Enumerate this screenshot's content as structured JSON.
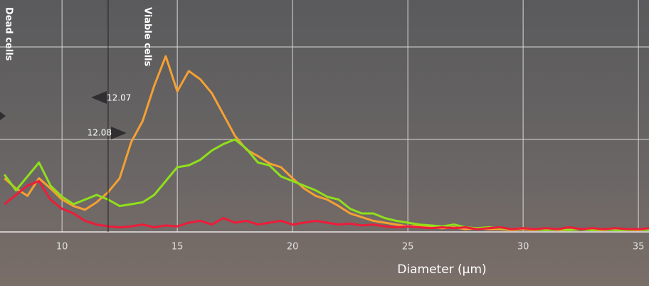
{
  "chart_data": {
    "type": "line",
    "xlabel": "Diameter (µm)",
    "x": [
      7.5,
      8,
      8.5,
      9,
      9.5,
      10,
      10.5,
      11,
      11.5,
      12,
      12.5,
      13,
      13.5,
      14,
      14.5,
      15,
      15.5,
      16,
      16.5,
      17,
      17.5,
      18,
      18.5,
      19,
      19.5,
      20,
      20.5,
      21,
      21.5,
      22,
      22.5,
      23,
      23.5,
      24,
      24.5,
      25,
      25.5,
      26,
      26.5,
      27,
      27.5,
      28,
      28.5,
      29,
      29.5,
      30,
      30.5,
      31,
      31.5,
      32,
      32.5,
      33,
      33.5,
      34,
      34.5,
      35,
      35.5
    ],
    "series": [
      {
        "color": "#f5a033",
        "values": [
          0.58,
          0.47,
          0.39,
          0.58,
          0.47,
          0.35,
          0.28,
          0.24,
          0.32,
          0.43,
          0.58,
          0.97,
          1.2,
          1.58,
          1.9,
          1.52,
          1.74,
          1.65,
          1.5,
          1.27,
          1.04,
          0.89,
          0.82,
          0.74,
          0.7,
          0.58,
          0.47,
          0.39,
          0.35,
          0.28,
          0.2,
          0.16,
          0.12,
          0.1,
          0.08,
          0.06,
          0.07,
          0.05,
          0.04,
          0.05,
          0.03,
          0.04,
          0.03,
          0.03,
          0.02,
          0.03,
          0.02,
          0.03,
          0.02,
          0.02,
          0.03,
          0.02,
          0.02,
          0.03,
          0.02,
          0.02,
          0.03
        ]
      },
      {
        "color": "#8fe01a",
        "values": [
          0.62,
          0.45,
          0.6,
          0.75,
          0.5,
          0.38,
          0.3,
          0.35,
          0.4,
          0.35,
          0.28,
          0.3,
          0.32,
          0.4,
          0.55,
          0.7,
          0.72,
          0.78,
          0.88,
          0.95,
          1.0,
          0.9,
          0.75,
          0.72,
          0.6,
          0.55,
          0.5,
          0.45,
          0.38,
          0.35,
          0.25,
          0.2,
          0.2,
          0.15,
          0.12,
          0.1,
          0.08,
          0.07,
          0.06,
          0.08,
          0.05,
          0.04,
          0.05,
          0.04,
          0.03,
          0.04,
          0.03,
          0.02,
          0.03,
          0.02,
          0.03,
          0.02,
          0.03,
          0.02,
          0.02,
          0.03,
          0.02
        ]
      },
      {
        "color": "#ee1c3a",
        "values": [
          0.3,
          0.4,
          0.5,
          0.55,
          0.35,
          0.25,
          0.2,
          0.12,
          0.08,
          0.06,
          0.05,
          0.06,
          0.08,
          0.05,
          0.07,
          0.06,
          0.1,
          0.12,
          0.08,
          0.15,
          0.1,
          0.12,
          0.08,
          0.1,
          0.12,
          0.08,
          0.1,
          0.12,
          0.1,
          0.08,
          0.09,
          0.07,
          0.08,
          0.06,
          0.05,
          0.06,
          0.05,
          0.04,
          0.05,
          0.04,
          0.05,
          0.03,
          0.04,
          0.05,
          0.03,
          0.04,
          0.03,
          0.04,
          0.03,
          0.05,
          0.03,
          0.04,
          0.03,
          0.04,
          0.03,
          0.03,
          0.04
        ]
      }
    ],
    "xlim": [
      7.31,
      35.46
    ],
    "xticks": [
      10,
      15,
      20,
      25,
      30,
      35
    ],
    "ylim": [
      0,
      2.5
    ],
    "ygrid": [
      1,
      2
    ],
    "grid": true,
    "gate": 12,
    "regions": [
      "Dead cells",
      "Viable cells"
    ],
    "markers": [
      "12.07",
      "12.08"
    ]
  }
}
